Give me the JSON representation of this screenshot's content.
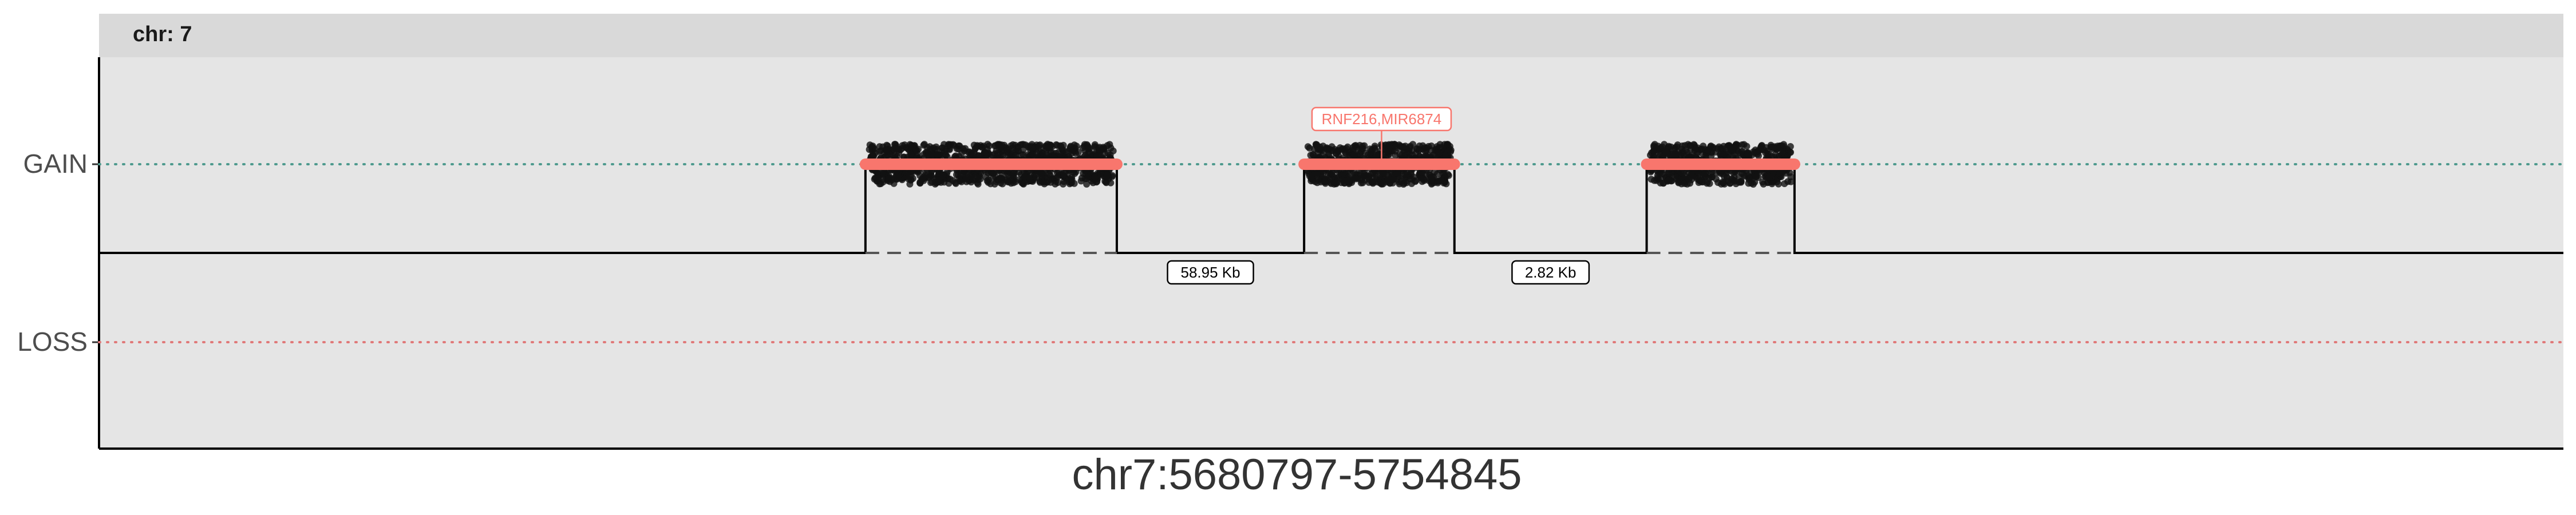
{
  "chart_data": {
    "type": "scatter",
    "facet_label": "chr: 7",
    "xlabel": "chr7:5680797-5754845",
    "ylabel": "",
    "y_categories": [
      "GAIN",
      "LOSS"
    ],
    "segments": [
      {
        "state": "GAIN",
        "x_start": 0.311,
        "x_end": 0.413
      },
      {
        "state": "GAIN",
        "x_start": 0.489,
        "x_end": 0.55
      },
      {
        "state": "GAIN",
        "x_start": 0.628,
        "x_end": 0.688
      }
    ],
    "gene_labels": [
      {
        "text": "RNF216,MIR6874",
        "segment": 1
      }
    ],
    "gap_labels": [
      {
        "text": "58.95 Kb",
        "between": [
          0,
          1
        ]
      },
      {
        "text": "2.82 Kb",
        "between": [
          1,
          2
        ]
      }
    ],
    "grid": false,
    "legend": "none",
    "colors": {
      "panel": "#e5e5e5",
      "strip": "#d9d9d9",
      "segment": "#f8766d",
      "points": "#111111",
      "gain_line": "#4e9a8e",
      "loss_line": "#e07878",
      "gene_label": "#f8766d",
      "axis_text": "#4d4d4d",
      "title_text": "#333333"
    }
  }
}
